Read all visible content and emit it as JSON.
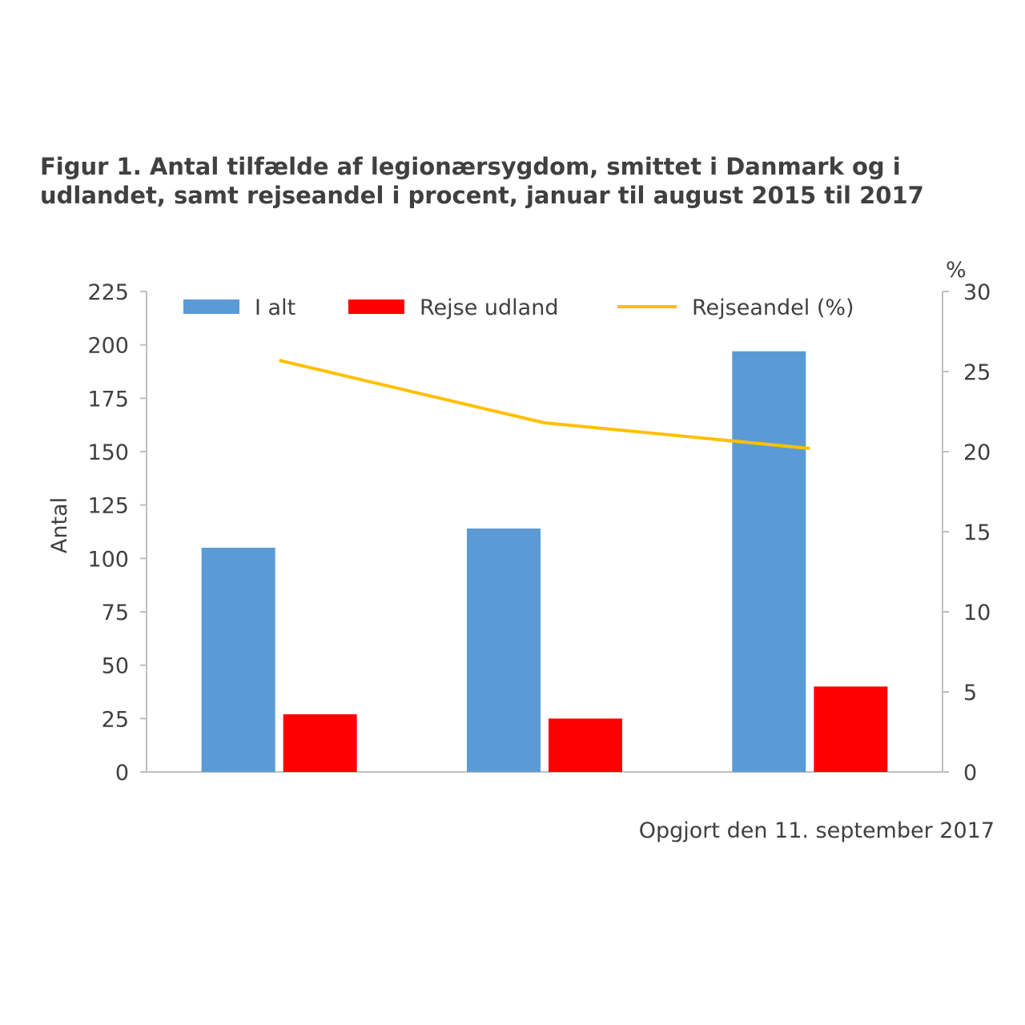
{
  "title_lines": [
    "Figur 1. Antal tilfælde af legionærsygdom, smittet i Danmark og i",
    "udlandet, samt rejseandel i procent, januar til august 2015 til 2017"
  ],
  "footnote": "Opgjort den 11. september 2017",
  "colors": {
    "i_alt": "#5b9bd5",
    "rejse_udland": "#ff0000",
    "rejseandel": "#ffc000",
    "axis": "#bfbfbf",
    "text": "#404040"
  },
  "chart_data": {
    "type": "bar",
    "categories": [
      "",
      "",
      ""
    ],
    "series": [
      {
        "name": "I alt",
        "type": "bar",
        "axis": "left",
        "values": [
          105,
          114,
          197
        ]
      },
      {
        "name": "Rejse udland",
        "type": "bar",
        "axis": "left",
        "values": [
          27,
          25,
          40
        ]
      },
      {
        "name": "Rejseandel (%)",
        "type": "line",
        "axis": "right",
        "values": [
          25.7,
          21.8,
          20.2
        ]
      }
    ],
    "ylabel": "Antal",
    "y2label": "%",
    "ylim": [
      0,
      225
    ],
    "yticks": [
      0,
      25,
      50,
      75,
      100,
      125,
      150,
      175,
      200,
      225
    ],
    "y2lim": [
      0,
      30
    ],
    "y2ticks": [
      0,
      5,
      10,
      15,
      20,
      25,
      30
    ],
    "grid": false,
    "legend": "top"
  }
}
